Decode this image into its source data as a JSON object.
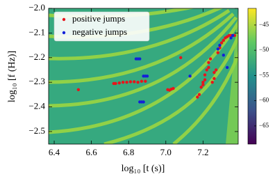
{
  "chart_data": {
    "type": "scatter",
    "xlabel": "log₁₀ [t (s)]",
    "ylabel": "log₁₀ [f (Hz)]",
    "xlim": [
      6.37,
      7.389
    ],
    "ylim": [
      -2.551,
      -2.0
    ],
    "xticks": [
      6.4,
      6.6,
      6.8,
      {
        "value": 7,
        "label": "7.0"
      },
      7.2
    ],
    "yticks": [
      {
        "value": -2.5,
        "label": "−2.5"
      },
      {
        "value": -2.4,
        "label": "−2.4"
      },
      {
        "value": -2.3,
        "label": "−2.3"
      },
      {
        "value": -2.2,
        "label": "−2.2"
      },
      {
        "value": -2.1,
        "label": "−2.1"
      },
      {
        "value": -2.0,
        "label": "−2.0"
      }
    ],
    "clim": [
      -68.6,
      -41.7
    ],
    "cticks": [
      {
        "value": -45,
        "label": "−45"
      },
      {
        "value": -50,
        "label": "−50"
      },
      {
        "value": -55,
        "label": "−55"
      },
      {
        "value": -60,
        "label": "−60"
      },
      {
        "value": -65,
        "label": "−65"
      }
    ],
    "legend": "upper left",
    "series": [
      {
        "name": "positive jumps",
        "color": "#e8141b",
        "x": [
          6.53,
          6.72,
          6.73,
          6.75,
          6.77,
          6.79,
          6.81,
          6.83,
          6.85,
          6.87,
          6.89,
          7.01,
          7.02,
          7.03,
          7.04,
          7.08,
          7.17,
          7.18,
          7.19,
          7.2,
          7.2,
          7.21,
          7.21,
          7.22,
          7.23,
          7.23,
          7.24,
          7.25,
          7.26,
          7.26,
          7.27,
          7.28,
          7.29,
          7.3,
          7.31,
          7.32,
          7.33,
          7.34,
          7.35,
          7.36,
          7.37
        ],
        "y": [
          -2.33,
          -2.305,
          -2.305,
          -2.303,
          -2.3,
          -2.3,
          -2.298,
          -2.298,
          -2.3,
          -2.296,
          -2.296,
          -2.33,
          -2.332,
          -2.328,
          -2.325,
          -2.2,
          -2.36,
          -2.35,
          -2.32,
          -2.31,
          -2.3,
          -2.29,
          -2.27,
          -2.25,
          -2.24,
          -2.22,
          -2.205,
          -2.3,
          -2.285,
          -2.26,
          -2.25,
          -2.18,
          -2.16,
          -2.14,
          -2.13,
          -2.12,
          -2.115,
          -2.11,
          -2.11,
          -2.11,
          -2.11
        ]
      },
      {
        "name": "negative jumps",
        "color": "#1420d8",
        "x": [
          6.84,
          6.85,
          6.86,
          6.88,
          6.89,
          6.9,
          6.86,
          6.87,
          6.88,
          7.13,
          7.28,
          7.29,
          7.31,
          7.33,
          7.35,
          7.36
        ],
        "y": [
          -2.205,
          -2.205,
          -2.205,
          -2.275,
          -2.275,
          -2.275,
          -2.38,
          -2.38,
          -2.38,
          -2.275,
          -2.165,
          -2.15,
          -2.19,
          -2.24,
          -2.12,
          -2.11
        ]
      }
    ]
  }
}
